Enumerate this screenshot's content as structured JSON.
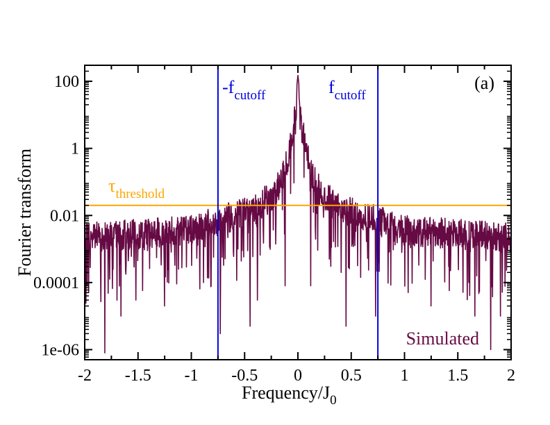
{
  "chart_data": {
    "type": "line",
    "panel_label": "(a)",
    "xlabel": "Frequency/J",
    "xlabel_sub": "0",
    "ylabel": "Fourier transform",
    "xlim": [
      -2,
      2
    ],
    "ylim": [
      5e-07,
      300
    ],
    "yscale": "log",
    "x_ticks": [
      -2,
      -1.5,
      -1,
      -0.5,
      0,
      0.5,
      1,
      1.5,
      2
    ],
    "x_tick_labels": [
      "-2",
      "-1.5",
      "-1",
      "-0.5",
      "0",
      "0.5",
      "1",
      "1.5",
      "2"
    ],
    "y_ticks": [
      1e-06,
      0.0001,
      0.01,
      1,
      100
    ],
    "y_tick_labels": [
      "1e-06",
      "0.0001",
      "0.01",
      "1",
      "100"
    ],
    "series": [
      {
        "name": "Simulated",
        "color": "#660a44",
        "envelope": [
          {
            "x": 0,
            "y": 150
          },
          {
            "x": 0.03,
            "y": 20
          },
          {
            "x": 0.08,
            "y": 2
          },
          {
            "x": 0.15,
            "y": 0.3
          },
          {
            "x": 0.25,
            "y": 0.1
          },
          {
            "x": 0.4,
            "y": 0.05
          },
          {
            "x": 0.55,
            "y": 0.03
          },
          {
            "x": 0.75,
            "y": 0.02
          },
          {
            "x": 1.0,
            "y": 0.01
          },
          {
            "x": 1.5,
            "y": 0.008
          },
          {
            "x": 2.0,
            "y": 0.006
          }
        ],
        "dips": [
          {
            "x": -1.81,
            "y": 8e-07
          },
          {
            "x": -1.66,
            "y": 1e-05
          },
          {
            "x": -1.52,
            "y": 3e-05
          },
          {
            "x": -1.25,
            "y": 2e-05
          },
          {
            "x": -0.73,
            "y": 3e-06
          },
          {
            "x": -0.45,
            "y": 5e-06
          },
          {
            "x": -0.38,
            "y": 3e-05
          },
          {
            "x": -0.12,
            "y": 8e-05
          },
          {
            "x": 0.12,
            "y": 8e-05
          },
          {
            "x": 0.45,
            "y": 5e-06
          },
          {
            "x": 0.73,
            "y": 1e-05
          },
          {
            "x": 1.25,
            "y": 2e-05
          },
          {
            "x": 1.66,
            "y": 1e-05
          },
          {
            "x": 1.81,
            "y": 1e-06
          },
          {
            "x": 1.9,
            "y": 1e-05
          }
        ]
      }
    ],
    "vlines": [
      {
        "x": -0.75,
        "label": "-f",
        "label_sub": "cutoff",
        "color": "#0000e0"
      },
      {
        "x": 0.75,
        "label": "f",
        "label_sub": "cutoff",
        "color": "#0000e0"
      }
    ],
    "hline": {
      "y": 0.02,
      "label": "τ",
      "label_sub": "threshold",
      "color": "#ffa500"
    },
    "legend_text": "Simulated"
  }
}
